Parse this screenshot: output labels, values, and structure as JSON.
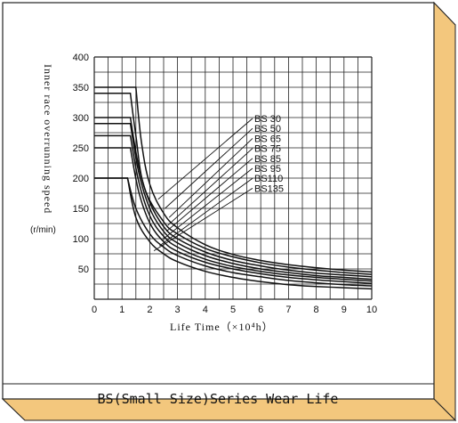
{
  "colors": {
    "frame_bevel": "#fdf0cf",
    "frame_shadow": "#f3c77d",
    "frame_border": "#222222",
    "plot_fill": "#ffffff",
    "grid": "#222222",
    "curve": "#111111"
  },
  "caption": "BS(Small Size)Series Wear Life",
  "chart_data": {
    "type": "line",
    "title": "",
    "xlabel": "Life Time（×10⁴h）",
    "ylabel": "Inner race overrunning speed",
    "ylabel_unit": "(r/min)",
    "xlim": [
      0,
      10
    ],
    "ylim": [
      0,
      400
    ],
    "x_ticks": [
      "0",
      "1",
      "2",
      "3",
      "4",
      "5",
      "6",
      "7",
      "8",
      "9",
      "10"
    ],
    "y_ticks": [
      "50",
      "100",
      "150",
      "200",
      "250",
      "300",
      "350",
      "400"
    ],
    "grid": true,
    "legend": "leader-line labels, upper middle",
    "series": [
      {
        "name": "BS 30",
        "x": [
          0,
          1.5,
          1.7,
          2,
          2.5,
          3,
          4,
          5,
          6,
          7,
          8,
          9,
          10
        ],
        "y": [
          350,
          350,
          260,
          190,
          142,
          118,
          90,
          74,
          64,
          57,
          52,
          48,
          45
        ]
      },
      {
        "name": "BS 50",
        "x": [
          0,
          1.3,
          1.5,
          1.8,
          2.5,
          3,
          4,
          5,
          6,
          7,
          8,
          9,
          10
        ],
        "y": [
          340,
          340,
          270,
          185,
          128,
          108,
          84,
          70,
          60,
          53,
          48,
          44,
          41
        ]
      },
      {
        "name": "BS 65",
        "x": [
          0,
          1.3,
          1.6,
          2,
          2.5,
          3,
          4,
          5,
          6,
          7,
          8,
          9,
          10
        ],
        "y": [
          300,
          300,
          220,
          160,
          120,
          100,
          78,
          64,
          55,
          48,
          43,
          40,
          37
        ]
      },
      {
        "name": "BS 75",
        "x": [
          0,
          1.3,
          1.6,
          2,
          2.5,
          3,
          4,
          5,
          6,
          7,
          8,
          9,
          10
        ],
        "y": [
          290,
          290,
          210,
          150,
          112,
          93,
          72,
          59,
          50,
          44,
          39,
          36,
          33
        ]
      },
      {
        "name": "BS 85",
        "x": [
          0,
          1.3,
          1.6,
          2,
          2.5,
          3,
          4,
          5,
          6,
          7,
          8,
          9,
          10
        ],
        "y": [
          270,
          270,
          195,
          138,
          104,
          86,
          66,
          54,
          46,
          40,
          36,
          33,
          30
        ]
      },
      {
        "name": "BS 95",
        "x": [
          0,
          1.3,
          1.6,
          2,
          2.5,
          3,
          4,
          5,
          6,
          7,
          8,
          9,
          10
        ],
        "y": [
          250,
          250,
          178,
          126,
          95,
          79,
          61,
          50,
          42,
          36,
          32,
          29,
          26
        ]
      },
      {
        "name": "BS110",
        "x": [
          0,
          1.2,
          1.5,
          2,
          2.5,
          3,
          4,
          5,
          6,
          7,
          8,
          9,
          10
        ],
        "y": [
          200,
          200,
          150,
          108,
          86,
          72,
          55,
          44,
          37,
          31,
          27,
          24,
          22
        ]
      },
      {
        "name": "BS135",
        "x": [
          0,
          1.2,
          1.5,
          2,
          2.5,
          3,
          4,
          5,
          6,
          7,
          8,
          9,
          10
        ],
        "y": [
          200,
          200,
          135,
          95,
          75,
          62,
          46,
          36,
          29,
          24,
          21,
          19,
          17
        ]
      }
    ],
    "label_targets": [
      {
        "name": "BS 30",
        "x": 2.3,
        "y": 165
      },
      {
        "name": "BS 50",
        "x": 2.55,
        "y": 150
      },
      {
        "name": "BS 65",
        "x": 2.7,
        "y": 135
      },
      {
        "name": "BS 75",
        "x": 2.65,
        "y": 122
      },
      {
        "name": "BS 85",
        "x": 2.6,
        "y": 112
      },
      {
        "name": "BS 95",
        "x": 2.5,
        "y": 100
      },
      {
        "name": "BS110",
        "x": 2.35,
        "y": 88
      },
      {
        "name": "BS135",
        "x": 2.15,
        "y": 80
      }
    ]
  }
}
